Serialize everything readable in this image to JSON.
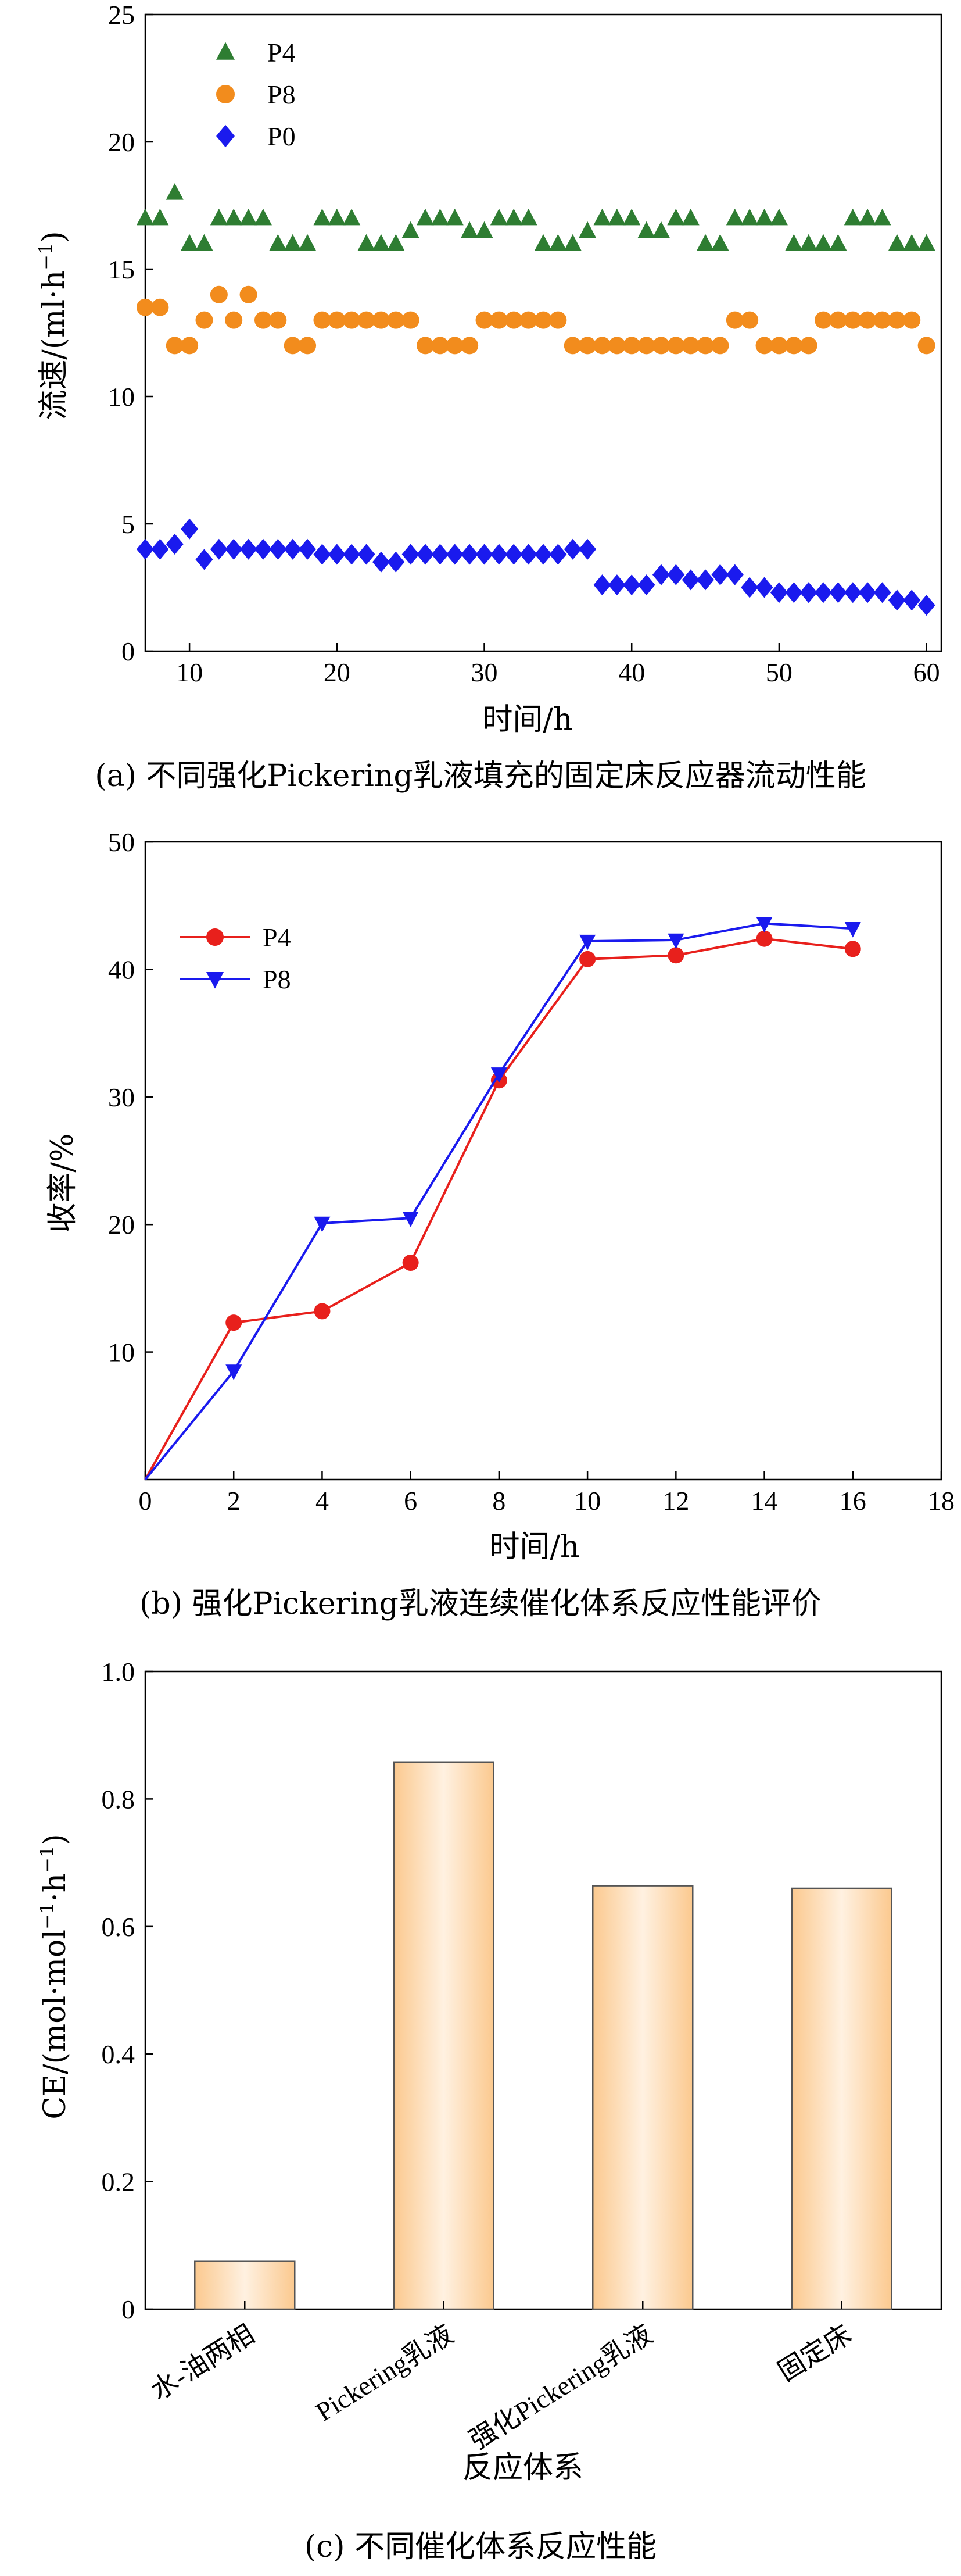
{
  "chart_data": [
    {
      "type": "scatter",
      "caption": "(a) 不同强化Pickering乳液填充的固定床反应器流动性能",
      "xlabel": "时间/h",
      "ylabel": "流速/(ml·h",
      "ylabel_sup": "−1",
      "ylabel_close": ")",
      "xlim": [
        7,
        61
      ],
      "ylim": [
        0,
        25
      ],
      "xticks": [
        "10",
        "20",
        "30",
        "40",
        "50",
        "60"
      ],
      "yticks": [
        "0",
        "5",
        "10",
        "15",
        "20",
        "25"
      ],
      "legend_position": "top-left",
      "series": [
        {
          "name": "P4",
          "marker": "triangle",
          "color": "#2e7d32",
          "x": [
            7,
            8,
            9,
            10,
            11,
            12,
            13,
            14,
            15,
            16,
            17,
            18,
            19,
            20,
            21,
            22,
            23,
            24,
            25,
            26,
            27,
            28,
            29,
            30,
            31,
            32,
            33,
            34,
            35,
            36,
            37,
            38,
            39,
            40,
            41,
            42,
            43,
            44,
            45,
            46,
            47,
            48,
            49,
            50,
            51,
            52,
            53,
            54,
            55,
            56,
            57,
            58,
            59,
            60
          ],
          "y": [
            17,
            17,
            18,
            16,
            16,
            17,
            17,
            17,
            17,
            16,
            16,
            16,
            17,
            17,
            17,
            16,
            16,
            16,
            16.5,
            17,
            17,
            17,
            16.5,
            16.5,
            17,
            17,
            17,
            16,
            16,
            16,
            16.5,
            17,
            17,
            17,
            16.5,
            16.5,
            17,
            17,
            16,
            16,
            17,
            17,
            17,
            17,
            16,
            16,
            16,
            16,
            17,
            17,
            17,
            16,
            16,
            16
          ]
        },
        {
          "name": "P8",
          "marker": "circle",
          "color": "#f28c1d",
          "x": [
            7,
            8,
            9,
            10,
            11,
            12,
            13,
            14,
            15,
            16,
            17,
            18,
            19,
            20,
            21,
            22,
            23,
            24,
            25,
            26,
            27,
            28,
            29,
            30,
            31,
            32,
            33,
            34,
            35,
            36,
            37,
            38,
            39,
            40,
            41,
            42,
            43,
            44,
            45,
            46,
            47,
            48,
            49,
            50,
            51,
            52,
            53,
            54,
            55,
            56,
            57,
            58,
            59,
            60
          ],
          "y": [
            13.5,
            13.5,
            12,
            12,
            13,
            14,
            13,
            14,
            13,
            13,
            12,
            12,
            13,
            13,
            13,
            13,
            13,
            13,
            13,
            12,
            12,
            12,
            12,
            13,
            13,
            13,
            13,
            13,
            13,
            12,
            12,
            12,
            12,
            12,
            12,
            12,
            12,
            12,
            12,
            12,
            13,
            13,
            12,
            12,
            12,
            12,
            13,
            13,
            13,
            13,
            13,
            13,
            13,
            12
          ]
        },
        {
          "name": "P0",
          "marker": "diamond",
          "color": "#1a1aee",
          "x": [
            7,
            8,
            9,
            10,
            11,
            12,
            13,
            14,
            15,
            16,
            17,
            18,
            19,
            20,
            21,
            22,
            23,
            24,
            25,
            26,
            27,
            28,
            29,
            30,
            31,
            32,
            33,
            34,
            35,
            36,
            37,
            38,
            39,
            40,
            41,
            42,
            43,
            44,
            45,
            46,
            47,
            48,
            49,
            50,
            51,
            52,
            53,
            54,
            55,
            56,
            57,
            58,
            59,
            60
          ],
          "y": [
            4,
            4,
            4.2,
            4.8,
            3.6,
            4,
            4,
            4,
            4,
            4,
            4,
            4,
            3.8,
            3.8,
            3.8,
            3.8,
            3.5,
            3.5,
            3.8,
            3.8,
            3.8,
            3.8,
            3.8,
            3.8,
            3.8,
            3.8,
            3.8,
            3.8,
            3.8,
            4,
            4,
            2.6,
            2.6,
            2.6,
            2.6,
            3,
            3,
            2.8,
            2.8,
            3,
            3,
            2.5,
            2.5,
            2.3,
            2.3,
            2.3,
            2.3,
            2.3,
            2.3,
            2.3,
            2.3,
            2,
            2,
            1.8
          ]
        }
      ]
    },
    {
      "type": "line",
      "caption": "(b) 强化Pickering乳液连续催化体系反应性能评价",
      "xlabel": "时间/h",
      "ylabel": "收率/%",
      "xlim": [
        0,
        18
      ],
      "ylim": [
        0,
        50
      ],
      "xticks": [
        "0",
        "2",
        "4",
        "6",
        "8",
        "10",
        "12",
        "14",
        "16",
        "18"
      ],
      "yticks": [
        "10",
        "20",
        "30",
        "40",
        "50"
      ],
      "legend_position": "top-left",
      "series": [
        {
          "name": "P4",
          "marker": "circle",
          "color": "#e8201c",
          "x": [
            0,
            2,
            4,
            6,
            8,
            10,
            12,
            14,
            16
          ],
          "y": [
            0,
            12.3,
            13.2,
            17,
            31.3,
            40.8,
            41.1,
            42.4,
            41.6
          ]
        },
        {
          "name": "P8",
          "marker": "triangle-down",
          "color": "#1a1aee",
          "x": [
            0,
            2,
            4,
            6,
            8,
            10,
            12,
            14,
            16
          ],
          "y": [
            0,
            8.5,
            20.1,
            20.5,
            31.8,
            42.2,
            42.3,
            43.6,
            43.2
          ]
        }
      ]
    },
    {
      "type": "bar",
      "caption": "(c) 不同催化体系反应性能",
      "xlabel": "反应体系",
      "ylabel": "CE/(mol·mol",
      "ylabel_sup1": "−1",
      "ylabel_mid": "·h",
      "ylabel_sup2": "−1",
      "ylabel_close": ")",
      "ylim": [
        0,
        1.0
      ],
      "yticks": [
        "0",
        "0.2",
        "0.4",
        "0.6",
        "0.8",
        "1.0"
      ],
      "categories": [
        "水-油两相",
        "Pickering乳液",
        "强化Pickering乳液",
        "固定床"
      ],
      "values": [
        0.075,
        0.858,
        0.664,
        0.66
      ],
      "bar_color": "#fcd9b0"
    }
  ]
}
